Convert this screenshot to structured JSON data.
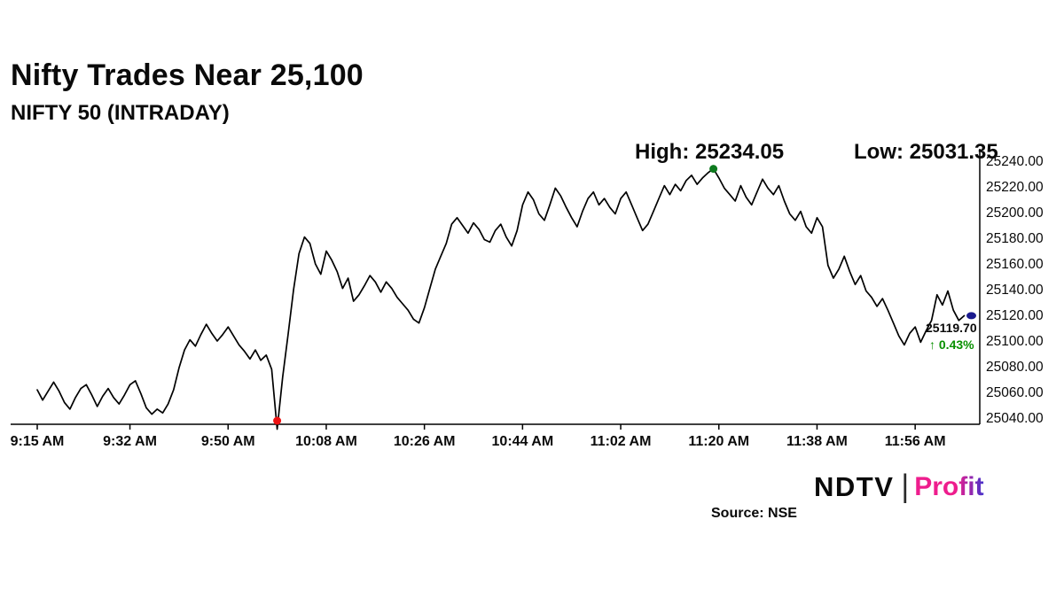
{
  "title": "Nifty Trades Near 25,100",
  "subtitle": "NIFTY 50 (INTRADAY)",
  "annotations": {
    "high_label": "High: 25234.05",
    "low_label": "Low: 25031.35",
    "last_price": "25119.70",
    "change": "↑ 0.43%"
  },
  "source": "Source: NSE",
  "logo": {
    "ndtv": "NDTV",
    "separator": "|",
    "profit": "Profit"
  },
  "colors": {
    "line": "#000000",
    "axis": "#000000",
    "text": "#0a0a0a",
    "high_dot": "#0e7a1e",
    "low_dot": "#ee1111",
    "last_dot": "#1a1a8e",
    "change_green": "#089000",
    "profit_gradient_start": "#ee1d8d",
    "profit_gradient_end": "#4433cc"
  },
  "chart_data": {
    "type": "line",
    "title": "NIFTY 50 (INTRADAY)",
    "xlabel": "",
    "ylabel": "",
    "ylim": [
      25040,
      25240
    ],
    "grid": false,
    "legend": "none",
    "y_ticks": [
      25040,
      25060,
      25080,
      25100,
      25120,
      25140,
      25160,
      25180,
      25200,
      25220,
      25240
    ],
    "x_tick_labels": [
      "9:15 AM",
      "9:32 AM",
      "9:50 AM",
      "10:08 AM",
      "10:26 AM",
      "10:44 AM",
      "11:02 AM",
      "11:20 AM",
      "11:38 AM",
      "11:56 AM"
    ],
    "x_tick_minutes": [
      0,
      17,
      35,
      53,
      71,
      89,
      107,
      125,
      143,
      161
    ],
    "high": {
      "minute": 124,
      "value": 25234.05
    },
    "low": {
      "minute": 44,
      "value": 25031.35
    },
    "last": {
      "minute": 170,
      "value": 25119.7
    },
    "change_pct": 0.43,
    "series": [
      {
        "name": "NIFTY 50",
        "start_minute": 0,
        "step_minutes": 1,
        "values": [
          25062,
          25054,
          25061,
          25068,
          25061,
          25052,
          25047,
          25056,
          25063,
          25066,
          25058,
          25049,
          25057,
          25063,
          25056,
          25051,
          25058,
          25066,
          25069,
          25059,
          25048,
          25043,
          25047,
          25044,
          25051,
          25062,
          25079,
          25093,
          25101,
          25096,
          25105,
          25113,
          25106,
          25100,
          25105,
          25111,
          25104,
          25097,
          25092,
          25086,
          25093,
          25085,
          25089,
          25078,
          25031.35,
          25072,
          25105,
          25140,
          25168,
          25181,
          25176,
          25160,
          25152,
          25170,
          25163,
          25154,
          25141,
          25149,
          25131,
          25136,
          25143,
          25151,
          25146,
          25138,
          25146,
          25141,
          25134,
          25129,
          25124,
          25117,
          25114,
          25126,
          25141,
          25156,
          25166,
          25176,
          25191,
          25196,
          25190,
          25184,
          25192,
          25187,
          25179,
          25177,
          25186,
          25191,
          25181,
          25174,
          25186,
          25206,
          25216,
          25210,
          25199,
          25194,
          25206,
          25219,
          25213,
          25204,
          25196,
          25189,
          25201,
          25211,
          25216,
          25206,
          25211,
          25204,
          25199,
          25211,
          25216,
          25206,
          25196,
          25186,
          25191,
          25201,
          25211,
          25221,
          25214,
          25222,
          25217,
          25225,
          25229,
          25222,
          25227,
          25231,
          25234.05,
          25227,
          25219,
          25214,
          25209,
          25221,
          25212,
          25206,
          25216,
          25226,
          25219,
          25214,
          25221,
          25209,
          25199,
          25194,
          25201,
          25189,
          25184,
          25196,
          25189,
          25159,
          25149,
          25156,
          25166,
          25154,
          25144,
          25151,
          25139,
          25134,
          25127,
          25133,
          25124,
          25114,
          25104,
          25097,
          25106,
          25111,
          25099,
          25108,
          25116,
          25136,
          25128,
          25139,
          25124,
          25116,
          25119.7
        ]
      }
    ]
  }
}
